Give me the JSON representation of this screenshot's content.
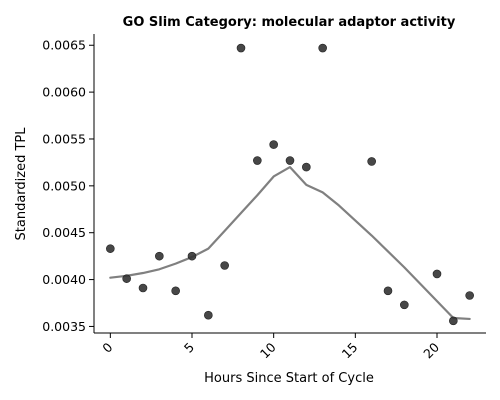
{
  "chart_data": {
    "type": "scatter",
    "title": "GO Slim Category: molecular adaptor activity",
    "xlabel": "Hours Since Start of Cycle",
    "ylabel": "Standardized TPL",
    "xlim": [
      -1,
      23
    ],
    "ylim": [
      0.00343,
      0.00662
    ],
    "x_ticks": [
      0,
      5,
      10,
      15,
      20
    ],
    "x_tick_labels": [
      "0",
      "5",
      "10",
      "15",
      "20"
    ],
    "y_ticks": [
      0.0035,
      0.004,
      0.0045,
      0.005,
      0.0055,
      0.006,
      0.0065
    ],
    "y_tick_labels": [
      "0.0035",
      "0.0040",
      "0.0045",
      "0.0050",
      "0.0055",
      "0.0060",
      "0.0065"
    ],
    "grid": false,
    "series": [
      {
        "type": "scatter",
        "color": "#333333",
        "points": [
          {
            "x": 0,
            "y": 0.00433
          },
          {
            "x": 1,
            "y": 0.00401
          },
          {
            "x": 2,
            "y": 0.00391
          },
          {
            "x": 3,
            "y": 0.00425
          },
          {
            "x": 4,
            "y": 0.00388
          },
          {
            "x": 5,
            "y": 0.00425
          },
          {
            "x": 6,
            "y": 0.00362
          },
          {
            "x": 7,
            "y": 0.00415
          },
          {
            "x": 8,
            "y": 0.00647
          },
          {
            "x": 9,
            "y": 0.00527
          },
          {
            "x": 10,
            "y": 0.00544
          },
          {
            "x": 11,
            "y": 0.00527
          },
          {
            "x": 12,
            "y": 0.0052
          },
          {
            "x": 13,
            "y": 0.00647
          },
          {
            "x": 16,
            "y": 0.00526
          },
          {
            "x": 17,
            "y": 0.00388
          },
          {
            "x": 18,
            "y": 0.00373
          },
          {
            "x": 20,
            "y": 0.00406
          },
          {
            "x": 21,
            "y": 0.00356
          },
          {
            "x": 22,
            "y": 0.00383
          }
        ]
      },
      {
        "type": "line",
        "color": "#808080",
        "points": [
          {
            "x": 0,
            "y": 0.00402
          },
          {
            "x": 1,
            "y": 0.00404
          },
          {
            "x": 2,
            "y": 0.00407
          },
          {
            "x": 3,
            "y": 0.00411
          },
          {
            "x": 4,
            "y": 0.00417
          },
          {
            "x": 5,
            "y": 0.00424
          },
          {
            "x": 6,
            "y": 0.00433
          },
          {
            "x": 7,
            "y": 0.00452
          },
          {
            "x": 8,
            "y": 0.00471
          },
          {
            "x": 9,
            "y": 0.0049
          },
          {
            "x": 10,
            "y": 0.0051
          },
          {
            "x": 11,
            "y": 0.0052
          },
          {
            "x": 12,
            "y": 0.00501
          },
          {
            "x": 13,
            "y": 0.00493
          },
          {
            "x": 14,
            "y": 0.00479
          },
          {
            "x": 15,
            "y": 0.00463
          },
          {
            "x": 16,
            "y": 0.00447
          },
          {
            "x": 17,
            "y": 0.0043
          },
          {
            "x": 18,
            "y": 0.00413
          },
          {
            "x": 19,
            "y": 0.00395
          },
          {
            "x": 20,
            "y": 0.00377
          },
          {
            "x": 21,
            "y": 0.00359
          },
          {
            "x": 22,
            "y": 0.00358
          }
        ]
      }
    ]
  }
}
